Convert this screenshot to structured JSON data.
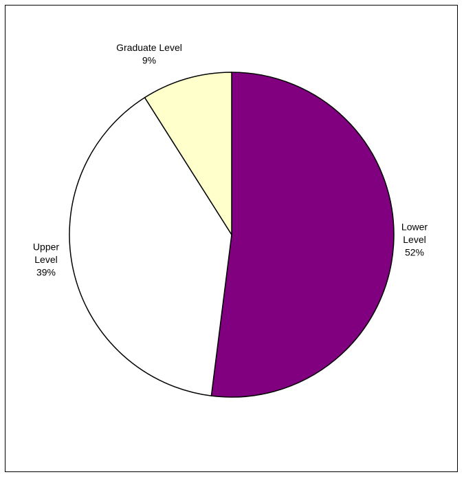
{
  "chart_data": {
    "type": "pie",
    "title": "",
    "start_angle_deg": 0,
    "direction": "clockwise",
    "slices": [
      {
        "label_lines": [
          "Lower",
          "Level",
          "52%"
        ],
        "value": 52,
        "color": "#800080"
      },
      {
        "label_lines": [
          "Upper",
          "Level",
          "39%"
        ],
        "value": 39,
        "color": "#ffffff"
      },
      {
        "label_lines": [
          "Graduate Level",
          "9%"
        ],
        "value": 9,
        "color": "#ffffcc"
      }
    ]
  }
}
